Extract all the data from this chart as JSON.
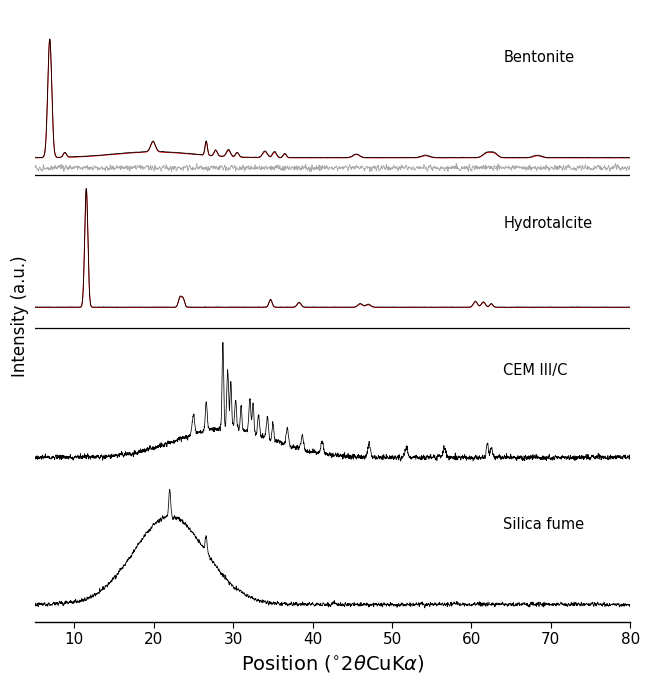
{
  "xlabel": "Position ($^\\circ$2$\\theta$CuK$\\alpha$)",
  "ylabel": "Intensity (a.u.)",
  "xlim": [
    5,
    80
  ],
  "xticks": [
    10,
    20,
    30,
    40,
    50,
    60,
    70,
    80
  ],
  "background_color": "#ffffff",
  "labels": [
    "Bentonite",
    "Hydrotalcite",
    "CEM III/C",
    "Silica fume"
  ],
  "red_color": "#dd0000",
  "gray_color": "#aaaaaa",
  "seed": 12345
}
